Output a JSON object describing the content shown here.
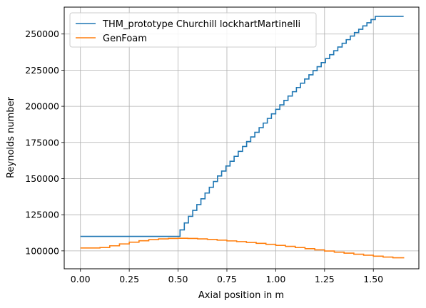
{
  "chart_data": {
    "type": "line",
    "xlabel": "Axial position in m",
    "ylabel": "Reynolds number",
    "xlim": [
      -0.083,
      1.733
    ],
    "ylim": [
      87600,
      268600
    ],
    "xticks": [
      0.0,
      0.25,
      0.5,
      0.75,
      1.0,
      1.25,
      1.5
    ],
    "xtick_labels": [
      "0.00",
      "0.25",
      "0.50",
      "0.75",
      "1.00",
      "1.25",
      "1.50"
    ],
    "yticks": [
      100000,
      125000,
      150000,
      175000,
      200000,
      225000,
      250000
    ],
    "ytick_labels": [
      "100000",
      "125000",
      "150000",
      "175000",
      "200000",
      "225000",
      "250000"
    ],
    "grid": true,
    "legend_position": "top-left",
    "series": [
      {
        "name": "THM_prototype Churchill lockhartMartinelli",
        "color": "#1f77b4",
        "style": "step",
        "x": [
          0.0,
          0.49,
          0.51,
          0.532,
          0.553,
          0.575,
          0.596,
          0.617,
          0.638,
          0.66,
          0.681,
          0.702,
          0.723,
          0.745,
          0.766,
          0.787,
          0.808,
          0.83,
          0.851,
          0.872,
          0.893,
          0.915,
          0.936,
          0.957,
          0.978,
          1.0,
          1.021,
          1.042,
          1.063,
          1.085,
          1.106,
          1.127,
          1.148,
          1.17,
          1.191,
          1.212,
          1.233,
          1.255,
          1.276,
          1.297,
          1.318,
          1.34,
          1.361,
          1.382,
          1.403,
          1.425,
          1.446,
          1.467,
          1.488,
          1.51,
          1.531,
          1.552,
          1.573,
          1.595,
          1.616,
          1.637,
          1.655
        ],
        "y": [
          110000,
          110000,
          114500,
          119300,
          123900,
          128000,
          132000,
          136000,
          140000,
          144000,
          148000,
          151800,
          155200,
          158700,
          162000,
          165400,
          168800,
          172200,
          175600,
          178800,
          182000,
          185200,
          188400,
          191600,
          194800,
          197900,
          201000,
          204100,
          207100,
          210100,
          213000,
          216000,
          218900,
          221800,
          224600,
          227400,
          230200,
          233000,
          235700,
          238400,
          241000,
          243600,
          246100,
          248600,
          251000,
          253300,
          255600,
          257800,
          260000,
          262200,
          262200,
          262200,
          262200,
          262200,
          262200,
          262200,
          262200
        ]
      },
      {
        "name": "GenFoam",
        "color": "#ff7f0e",
        "style": "step",
        "x": [
          0.0,
          0.05,
          0.1,
          0.15,
          0.2,
          0.25,
          0.3,
          0.35,
          0.4,
          0.45,
          0.5,
          0.55,
          0.6,
          0.65,
          0.7,
          0.75,
          0.8,
          0.85,
          0.9,
          0.95,
          1.0,
          1.05,
          1.1,
          1.15,
          1.2,
          1.25,
          1.3,
          1.35,
          1.4,
          1.45,
          1.5,
          1.55,
          1.6,
          1.655
        ],
        "y": [
          102000,
          102000,
          102300,
          103500,
          104800,
          106000,
          107000,
          107800,
          108300,
          108600,
          108700,
          108600,
          108300,
          107900,
          107400,
          106900,
          106400,
          105800,
          105200,
          104500,
          103800,
          103100,
          102300,
          101500,
          100700,
          99900,
          99100,
          98400,
          97700,
          97000,
          96300,
          95700,
          95200,
          94800
        ]
      }
    ]
  }
}
